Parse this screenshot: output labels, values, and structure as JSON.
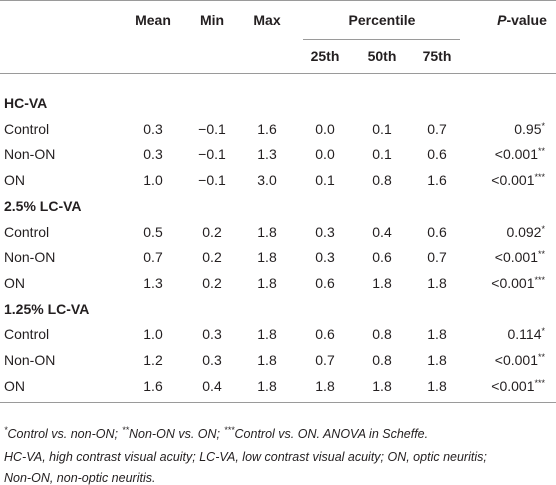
{
  "table": {
    "header": {
      "columns": [
        "Mean",
        "Min",
        "Max"
      ],
      "percentile": "Percentile",
      "subcolumns": [
        "25th",
        "50th",
        "75th"
      ],
      "p_italic": "P",
      "p_rest": "-value"
    },
    "sections": [
      {
        "title": "HC-VA",
        "rows": [
          {
            "label": "Control",
            "cells": [
              "0.3",
              "−0.1",
              "1.6",
              "0.0",
              "0.1",
              "0.7"
            ],
            "p": "0.95",
            "sig": "*"
          },
          {
            "label": "Non-ON",
            "cells": [
              "0.3",
              "−0.1",
              "1.3",
              "0.0",
              "0.1",
              "0.6"
            ],
            "p": "<0.001",
            "sig": "**"
          },
          {
            "label": "ON",
            "cells": [
              "1.0",
              "−0.1",
              "3.0",
              "0.1",
              "0.8",
              "1.6"
            ],
            "p": "<0.001",
            "sig": "***"
          }
        ]
      },
      {
        "title": "2.5% LC-VA",
        "rows": [
          {
            "label": "Control",
            "cells": [
              "0.5",
              "0.2",
              "1.8",
              "0.3",
              "0.4",
              "0.6"
            ],
            "p": "0.092",
            "sig": "*"
          },
          {
            "label": "Non-ON",
            "cells": [
              "0.7",
              "0.2",
              "1.8",
              "0.3",
              "0.6",
              "0.7"
            ],
            "p": "<0.001",
            "sig": "**"
          },
          {
            "label": "ON",
            "cells": [
              "1.3",
              "0.2",
              "1.8",
              "0.6",
              "1.8",
              "1.8"
            ],
            "p": "<0.001",
            "sig": "***"
          }
        ]
      },
      {
        "title": "1.25% LC-VA",
        "rows": [
          {
            "label": "Control",
            "cells": [
              "1.0",
              "0.3",
              "1.8",
              "0.6",
              "0.8",
              "1.8"
            ],
            "p": "0.114",
            "sig": "*"
          },
          {
            "label": "Non-ON",
            "cells": [
              "1.2",
              "0.3",
              "1.8",
              "0.7",
              "0.8",
              "1.8"
            ],
            "p": "<0.001",
            "sig": "**"
          },
          {
            "label": "ON",
            "cells": [
              "1.6",
              "0.4",
              "1.8",
              "1.8",
              "1.8",
              "1.8"
            ],
            "p": "<0.001",
            "sig": "***"
          }
        ]
      }
    ],
    "notes": {
      "sig_parts": [
        [
          "*",
          "Control vs. non-ON;"
        ],
        [
          "**",
          "Non-ON vs. ON;"
        ],
        [
          "***",
          "Control vs. ON. ANOVA in Scheffe."
        ]
      ],
      "lines": [
        "HC-VA, high contrast visual acuity; LC-VA, low contrast visual acuity; ON, optic neuritis;",
        "Non-ON, non-optic neuritis."
      ]
    }
  }
}
